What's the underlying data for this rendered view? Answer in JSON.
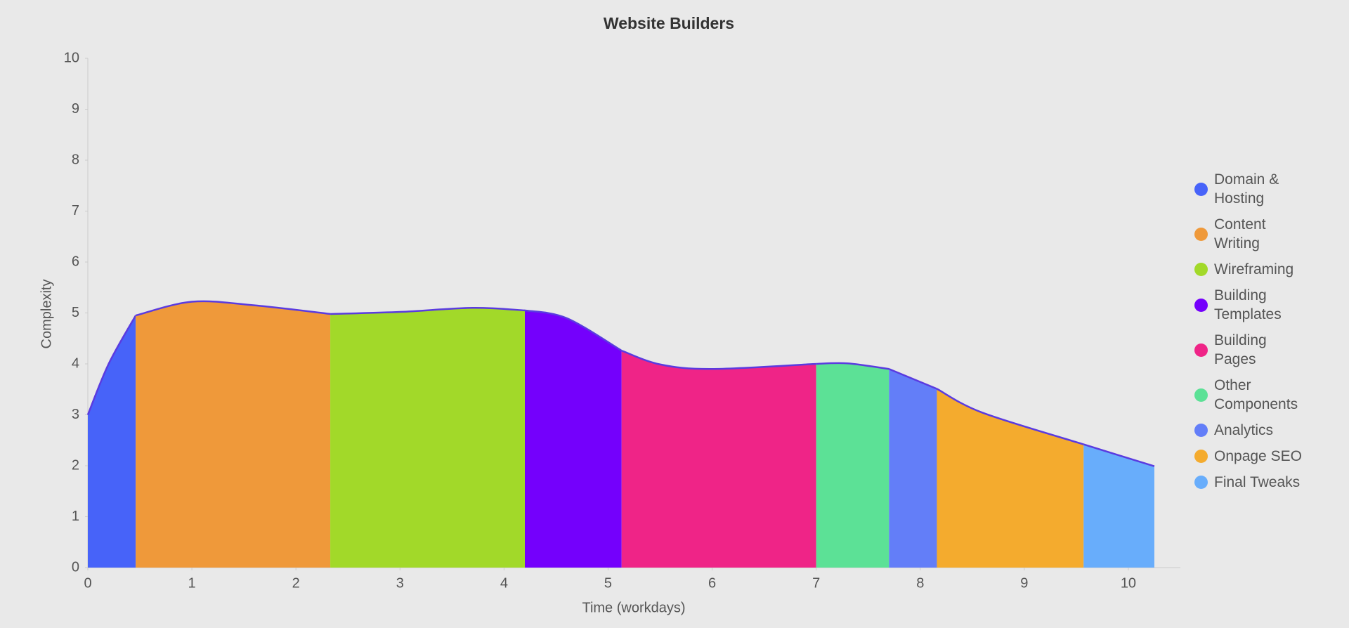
{
  "chart_data": {
    "type": "area",
    "title": "Website Builders",
    "x_label": "Time (workdays)",
    "y_label": "Complexity",
    "xlim": [
      0,
      10.5
    ],
    "xticks": [
      0,
      1,
      2,
      3,
      4,
      5,
      6,
      7,
      8,
      9,
      10
    ],
    "ylim": [
      0,
      10
    ],
    "yticks": [
      0,
      1,
      2,
      3,
      4,
      5,
      6,
      7,
      8,
      9,
      10
    ],
    "line_color": "#5a3be0",
    "series": [
      {
        "name": "Domain & Hosting",
        "color": "#4763f9",
        "x": [
          0,
          0.2,
          0.46
        ],
        "values": [
          3,
          4.0,
          4.95
        ]
      },
      {
        "name": "Content Writing",
        "color": "#ef993a",
        "x": [
          0.46,
          1,
          1.6,
          2.33
        ],
        "values": [
          4.95,
          5.22,
          5.15,
          4.98
        ]
      },
      {
        "name": "Wireframing",
        "color": "#a2d929",
        "x": [
          2.33,
          3,
          3.7,
          4.2
        ],
        "values": [
          4.98,
          5.02,
          5.1,
          5.05
        ]
      },
      {
        "name": "Building Templates",
        "color": "#7400fc",
        "x": [
          4.2,
          4.6,
          5.13
        ],
        "values": [
          5.05,
          4.9,
          4.26
        ]
      },
      {
        "name": "Building Pages",
        "color": "#ef2487",
        "x": [
          5.13,
          5.5,
          6,
          7
        ],
        "values": [
          4.26,
          3.99,
          3.9,
          4.0
        ]
      },
      {
        "name": "Other Components",
        "color": "#5ce196",
        "x": [
          7,
          7.3,
          7.7
        ],
        "values": [
          4.0,
          4.01,
          3.9
        ]
      },
      {
        "name": "Analytics",
        "color": "#637ef8",
        "x": [
          7.7,
          8.16
        ],
        "values": [
          3.9,
          3.51
        ]
      },
      {
        "name": "Onpage SEO",
        "color": "#f4ab2e",
        "x": [
          8.16,
          8.6,
          9.57
        ],
        "values": [
          3.51,
          3.04,
          2.42
        ]
      },
      {
        "name": "Final Tweaks",
        "color": "#68adfb",
        "x": [
          9.57,
          10.25
        ],
        "values": [
          2.42,
          1.99
        ]
      }
    ]
  }
}
